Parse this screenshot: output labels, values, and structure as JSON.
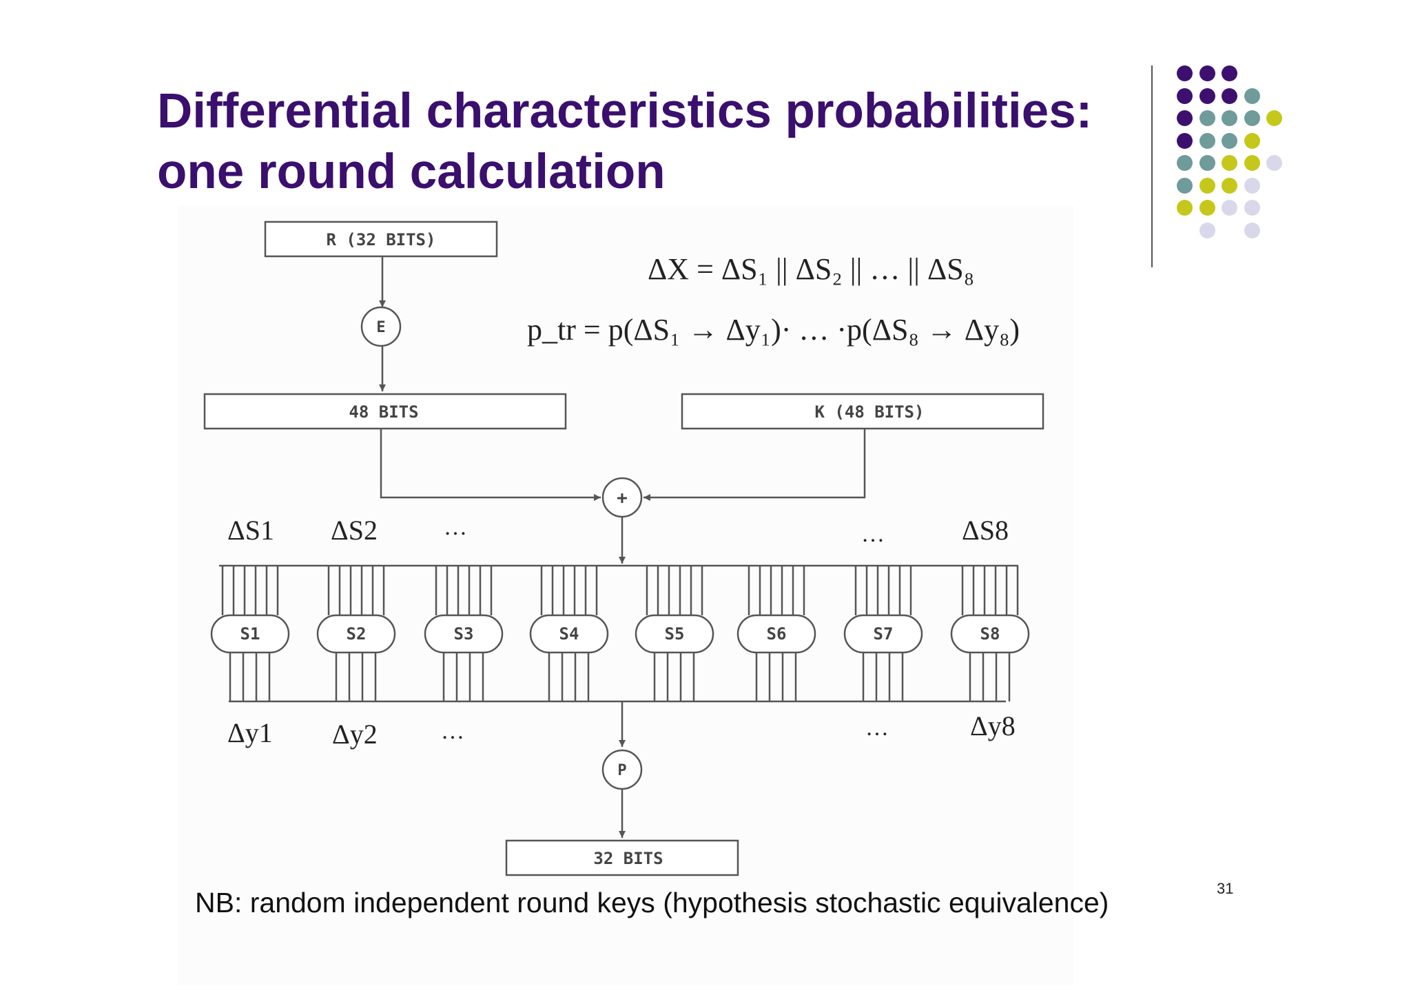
{
  "slide": {
    "title_line1": "Differential characteristics probabilities:",
    "title_line2": "one round calculation",
    "note": "NB: random independent round keys (hypothesis stochastic equivalence)",
    "page_number": "31"
  },
  "equations": {
    "delta_x": "ΔX = ΔS₁ || ΔS₂ || … || ΔS₈",
    "p_tr": "p_tr = p(ΔS₁ → Δy₁)· … ·p(ΔS₈ → Δy₈)"
  },
  "diagram": {
    "r_box": "R (32 BITS)",
    "expansion": "E",
    "expanded_box": "48 BITS",
    "key_box": "K (48 BITS)",
    "xor": "+",
    "permutation": "P",
    "output_box": "32 BITS",
    "sbox_labels": [
      "S1",
      "S2",
      "S3",
      "S4",
      "S5",
      "S6",
      "S7",
      "S8"
    ],
    "input_diff_labels": [
      "ΔS1",
      "ΔS2",
      "…",
      "…",
      "ΔS8"
    ],
    "output_diff_labels": [
      "Δy1",
      "Δy2",
      "…",
      "…",
      "Δy8"
    ]
  },
  "colors": {
    "title": "#3a0f6e",
    "dot_purple": "#3d1070",
    "dot_teal": "#6f9b9a",
    "dot_lime": "#c5c81a",
    "dot_lavender": "#d9d8ea"
  }
}
